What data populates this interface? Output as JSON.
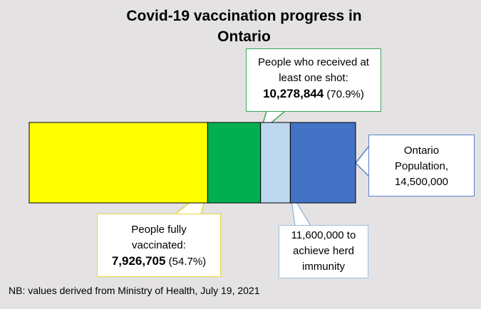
{
  "title_lines": [
    "Covid-19 vaccination progress in",
    "Ontario"
  ],
  "chart_data": {
    "type": "bar",
    "orientation": "horizontal-stacked",
    "title": "Covid-19 vaccination progress in Ontario",
    "xlim": [
      0,
      14500000
    ],
    "segments": [
      {
        "key": "fully",
        "value": 7926705,
        "color": "#ffff00"
      },
      {
        "key": "one_shot",
        "value": 10278844,
        "color": "#00b050"
      },
      {
        "key": "herd",
        "value": 11600000,
        "color": "#bdd7ee"
      },
      {
        "key": "population",
        "value": 14500000,
        "color": "#4472c4"
      }
    ]
  },
  "callouts": {
    "one_shot": {
      "lines": [
        "People who received at",
        "least one shot:"
      ],
      "value": "10,278,844",
      "pct": "(70.9%)"
    },
    "population": {
      "lines": [
        "Ontario",
        "Population,",
        "14,500,000"
      ]
    },
    "fully": {
      "lines": [
        "People fully",
        "vaccinated:"
      ],
      "value": "7,926,705",
      "pct": "(54.7%)"
    },
    "herd": {
      "lines": [
        "11,600,000 to",
        "achieve herd",
        "immunity"
      ]
    }
  },
  "footnote": "NB: values derived from Ministry of Health, July 19, 2021"
}
